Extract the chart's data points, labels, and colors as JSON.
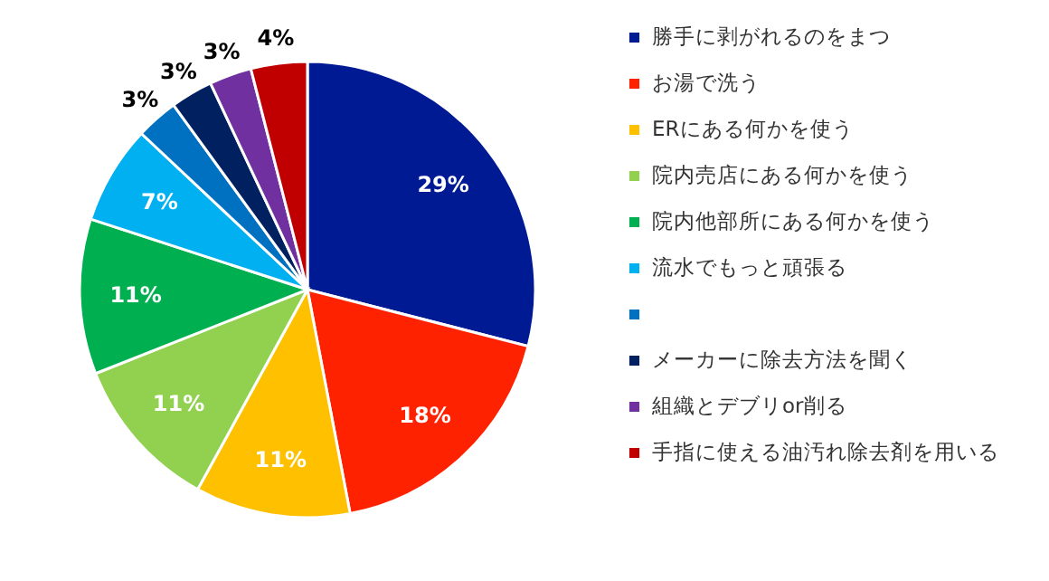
{
  "chart_data": {
    "type": "pie",
    "categories": [
      "勝手に剥がれるのをまつ",
      "お湯で洗う",
      "ERにある何かを使う",
      "院内売店にある何かを使う",
      "院内他部所にある何かを使う",
      "流水でもっと頑張る",
      null,
      "メーカーに除去方法を聞く",
      "組織とデブリor削る",
      "手指に使える油汚れ除去剤を用いる"
    ],
    "values": [
      29,
      18,
      11,
      11,
      11,
      7,
      3,
      3,
      3,
      4
    ],
    "value_labels": [
      "29%",
      "18%",
      "11%",
      "11%",
      "11%",
      "7%",
      "3%",
      "3%",
      "3%",
      "4%"
    ],
    "colors": [
      "#001a94",
      "#ff2200",
      "#ffc000",
      "#92d050",
      "#00b050",
      "#00b0f0",
      "#0070c0",
      "#002060",
      "#7030a0",
      "#c00000"
    ],
    "legend": "right"
  }
}
